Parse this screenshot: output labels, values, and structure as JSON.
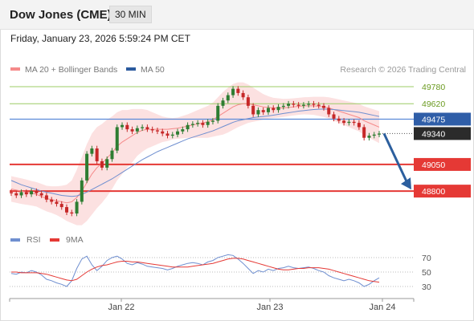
{
  "header": {
    "title": "Dow Jones (CME)",
    "timeframe": "30 MIN",
    "datetime": "Friday, January 23, 2026 5:59:24 PM CET"
  },
  "legend": [
    {
      "label": "MA 20 + Bollinger Bands",
      "color": "#f58a8a"
    },
    {
      "label": "MA 50",
      "color": "#2b5a9e"
    }
  ],
  "watermark": "Research © 2026 Trading Central",
  "colors": {
    "up": "#2e7d32",
    "down": "#c62828",
    "resistance": "#9ccc65",
    "support": "#e53935",
    "pivot": "#5b8bd9",
    "band": "#fbd7d7",
    "ma20": "#f58a8a",
    "ma50": "#6f8fd0",
    "rsi": "#6f8fd0",
    "rsi_ma": "#e53935",
    "arrow": "#2c5f9e"
  },
  "chart_data": [
    {
      "type": "candlestick",
      "y_ticks": [],
      "y_range": [
        48500,
        49900
      ],
      "current_price": "49340",
      "levels": [
        {
          "label": "49780",
          "value": 49780,
          "kind": "resistance"
        },
        {
          "label": "49620",
          "value": 49620,
          "kind": "resistance"
        },
        {
          "label": "49475",
          "value": 49475,
          "kind": "pivot"
        },
        {
          "label": "49050",
          "value": 49050,
          "kind": "support"
        },
        {
          "label": "48800",
          "value": 48800,
          "kind": "support"
        }
      ],
      "x_labels": [
        "Jan 22",
        "Jan 23",
        "Jan 24"
      ],
      "forecast": {
        "from": 49340,
        "to": 48800,
        "direction": "down"
      },
      "closes": [
        48780,
        48760,
        48790,
        48770,
        48800,
        48780,
        48760,
        48720,
        48700,
        48680,
        48650,
        48600,
        48590,
        48700,
        48900,
        49150,
        49200,
        49080,
        49020,
        49100,
        49180,
        49400,
        49420,
        49380,
        49360,
        49390,
        49400,
        49380,
        49370,
        49360,
        49340,
        49320,
        49330,
        49360,
        49380,
        49420,
        49430,
        49440,
        49420,
        49450,
        49460,
        49600,
        49650,
        49700,
        49760,
        49720,
        49680,
        49600,
        49520,
        49560,
        49540,
        49580,
        49560,
        49590,
        49600,
        49620,
        49610,
        49600,
        49610,
        49620,
        49610,
        49600,
        49580,
        49520,
        49480,
        49460,
        49440,
        49450,
        49440,
        49400,
        49300,
        49320,
        49330,
        49340
      ],
      "ma20": [
        48820,
        48810,
        48800,
        48790,
        48780,
        48770,
        48750,
        48730,
        48720,
        48710,
        48700,
        48690,
        48700,
        48740,
        48800,
        48880,
        48960,
        49020,
        49060,
        49110,
        49160,
        49220,
        49260,
        49290,
        49320,
        49350,
        49370,
        49380,
        49380,
        49380,
        49380,
        49380,
        49385,
        49390,
        49400,
        49410,
        49420,
        49430,
        49440,
        49450,
        49470,
        49500,
        49530,
        49560,
        49590,
        49610,
        49620,
        49620,
        49610,
        49600,
        49590,
        49585,
        49580,
        49580,
        49580,
        49585,
        49590,
        49595,
        49600,
        49600,
        49600,
        49595,
        49590,
        49580,
        49565,
        49550,
        49535,
        49520,
        49505,
        49490,
        49460,
        49440,
        49420,
        49400
      ],
      "ma50": [
        48900,
        48880,
        48860,
        48845,
        48830,
        48815,
        48800,
        48790,
        48780,
        48770,
        48760,
        48755,
        48750,
        48755,
        48770,
        48790,
        48815,
        48840,
        48865,
        48890,
        48915,
        48945,
        48975,
        49005,
        49035,
        49065,
        49095,
        49120,
        49145,
        49170,
        49190,
        49210,
        49230,
        49250,
        49270,
        49290,
        49305,
        49320,
        49335,
        49350,
        49365,
        49385,
        49405,
        49425,
        49445,
        49460,
        49470,
        49480,
        49490,
        49495,
        49500,
        49505,
        49512,
        49520,
        49528,
        49535,
        49542,
        49550,
        49555,
        49560,
        49565,
        49568,
        49570,
        49568,
        49565,
        49560,
        49555,
        49550,
        49545,
        49540,
        49530,
        49520,
        49510,
        49500
      ],
      "bb_width": [
        120,
        120,
        120,
        118,
        115,
        115,
        118,
        120,
        125,
        135,
        150,
        170,
        200,
        260,
        320,
        360,
        380,
        380,
        370,
        360,
        340,
        320,
        300,
        270,
        250,
        220,
        200,
        180,
        160,
        140,
        120,
        110,
        100,
        100,
        105,
        110,
        120,
        130,
        140,
        150,
        160,
        180,
        200,
        210,
        215,
        210,
        200,
        180,
        160,
        140,
        120,
        105,
        95,
        90,
        85,
        82,
        80,
        80,
        80,
        82,
        85,
        90,
        95,
        100,
        105,
        110,
        115,
        120,
        125,
        130,
        135,
        140,
        145,
        150
      ]
    },
    {
      "type": "line",
      "title": "RSI",
      "series": [
        {
          "name": "RSI",
          "values": [
            48,
            47,
            50,
            49,
            52,
            50,
            46,
            40,
            38,
            35,
            33,
            30,
            38,
            55,
            68,
            72,
            60,
            52,
            58,
            66,
            70,
            72,
            68,
            62,
            60,
            63,
            61,
            58,
            57,
            56,
            55,
            53,
            55,
            58,
            60,
            62,
            63,
            62,
            60,
            64,
            66,
            70,
            72,
            74,
            73,
            68,
            62,
            55,
            48,
            52,
            50,
            54,
            52,
            55,
            56,
            58,
            56,
            55,
            56,
            57,
            55,
            52,
            50,
            45,
            42,
            40,
            38,
            40,
            38,
            35,
            30,
            33,
            38,
            42
          ]
        },
        {
          "name": "9MA",
          "values": [
            50,
            50,
            49,
            49,
            49,
            49,
            48,
            47,
            45,
            43,
            41,
            39,
            38,
            40,
            45,
            50,
            54,
            57,
            59,
            60,
            62,
            64,
            65,
            65,
            64,
            64,
            63,
            62,
            61,
            60,
            59,
            58,
            57,
            57,
            57,
            57,
            58,
            59,
            60,
            61,
            62,
            64,
            66,
            68,
            69,
            69,
            68,
            66,
            64,
            62,
            60,
            58,
            56,
            54,
            53,
            53,
            54,
            55,
            55,
            56,
            56,
            56,
            55,
            54,
            52,
            50,
            48,
            46,
            44,
            42,
            40,
            38,
            37,
            36
          ]
        }
      ],
      "y_ticks": [
        "70",
        "50",
        "30"
      ],
      "ylim": [
        20,
        80
      ]
    }
  ]
}
